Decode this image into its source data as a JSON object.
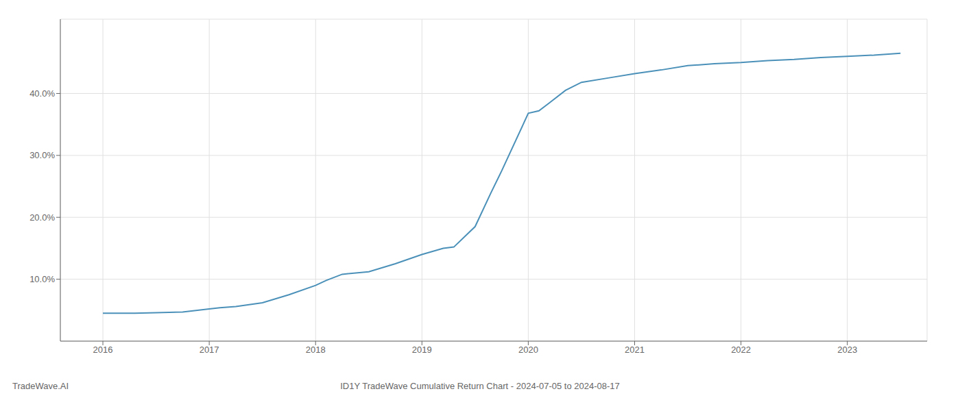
{
  "chart_data": {
    "type": "line",
    "title": "ID1Y TradeWave Cumulative Return Chart - 2024-07-05 to 2024-08-17",
    "annotations": [
      "TradeWave.AI"
    ],
    "color": "#4a90b8",
    "grid": true,
    "x": [
      2016.0,
      2016.1,
      2016.2,
      2016.3,
      2016.5,
      2016.75,
      2017.0,
      2017.1,
      2017.25,
      2017.5,
      2017.75,
      2018.0,
      2018.1,
      2018.25,
      2018.5,
      2018.75,
      2019.0,
      2019.1,
      2019.2,
      2019.3,
      2019.5,
      2019.65,
      2019.75,
      2020.0,
      2020.1,
      2020.2,
      2020.35,
      2020.5,
      2020.75,
      2021.0,
      2021.25,
      2021.5,
      2021.75,
      2022.0,
      2022.25,
      2022.5,
      2022.75,
      2023.0,
      2023.25,
      2023.5
    ],
    "values": [
      4.5,
      4.5,
      4.5,
      4.5,
      4.6,
      4.7,
      5.2,
      5.4,
      5.6,
      6.2,
      7.5,
      9.0,
      9.8,
      10.8,
      11.2,
      12.5,
      14.0,
      14.5,
      15.0,
      15.2,
      18.5,
      24.0,
      27.5,
      36.8,
      37.2,
      38.5,
      40.5,
      41.8,
      42.5,
      43.2,
      43.8,
      44.5,
      44.8,
      45.0,
      45.3,
      45.5,
      45.8,
      46.0,
      46.2,
      46.5
    ],
    "xlim": [
      2015.6,
      2023.75
    ],
    "xticks": [
      2016,
      2017,
      2018,
      2019,
      2020,
      2021,
      2022,
      2023
    ],
    "ylim": [
      0,
      52
    ],
    "yticks": [
      {
        "value": 10.0,
        "label": "10.0%"
      },
      {
        "value": 20.0,
        "label": "20.0%"
      },
      {
        "value": 30.0,
        "label": "30.0%"
      },
      {
        "value": 40.0,
        "label": "40.0%"
      }
    ]
  }
}
